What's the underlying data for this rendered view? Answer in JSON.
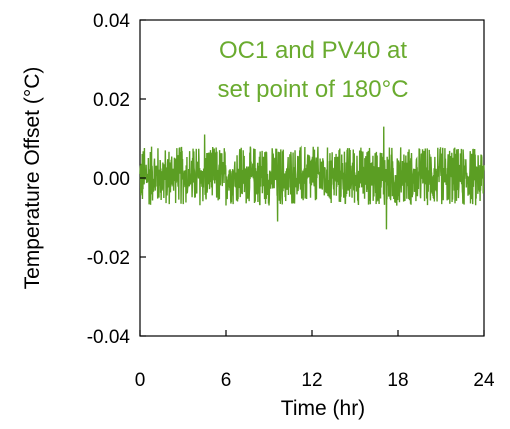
{
  "chart_data": {
    "type": "line",
    "title": "",
    "xlabel": "Time (hr)",
    "ylabel": "Temperature Offset (°C)",
    "xlim": [
      0,
      24
    ],
    "ylim": [
      -0.04,
      0.04
    ],
    "x_ticks": [
      0,
      6,
      12,
      18,
      24
    ],
    "x_tick_labels": [
      "0",
      "6",
      "12",
      "18",
      "24"
    ],
    "y_ticks": [
      0.04,
      0.02,
      0.0,
      -0.02,
      -0.04
    ],
    "y_tick_labels": [
      "0.04",
      "0.02",
      "0.00",
      "-0.02",
      "-0.04"
    ],
    "grid": false,
    "annotation": [
      "OC1 and PV40 at",
      "set point of 180°C"
    ],
    "series": [
      {
        "color": "#5b9e23",
        "description_values": "dense noise trace around 0.00 with typical spread about ±0.007 °C and peaks near +0.013 and -0.013",
        "typical_range": [
          -0.007,
          0.008
        ],
        "peaks": [
          {
            "x": 17.0,
            "y": 0.013
          },
          {
            "x": 17.2,
            "y": -0.013
          },
          {
            "x": 4.5,
            "y": 0.011
          },
          {
            "x": 9.6,
            "y": -0.011
          }
        ]
      }
    ]
  },
  "colors": {
    "series": "#5b9e23",
    "annotation": "#6aab2f",
    "axis": "#000000"
  }
}
